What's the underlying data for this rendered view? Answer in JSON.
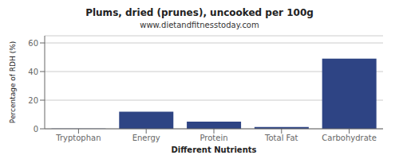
{
  "chart_data": {
    "type": "bar",
    "title": "Plums, dried (prunes), uncooked per 100g",
    "subtitle": "www.dietandfitnesstoday.com",
    "xlabel": "Different Nutrients",
    "ylabel": "Percentage of RDH (%)",
    "categories": [
      "Tryptophan",
      "Energy",
      "Protein",
      "Total Fat",
      "Carbohydrate"
    ],
    "values": [
      0.2,
      12.0,
      5.0,
      1.2,
      49.0
    ],
    "color": "#2e4484",
    "ylim": [
      0,
      65
    ],
    "yticks": [
      0,
      20,
      40,
      60
    ],
    "grid": true
  }
}
